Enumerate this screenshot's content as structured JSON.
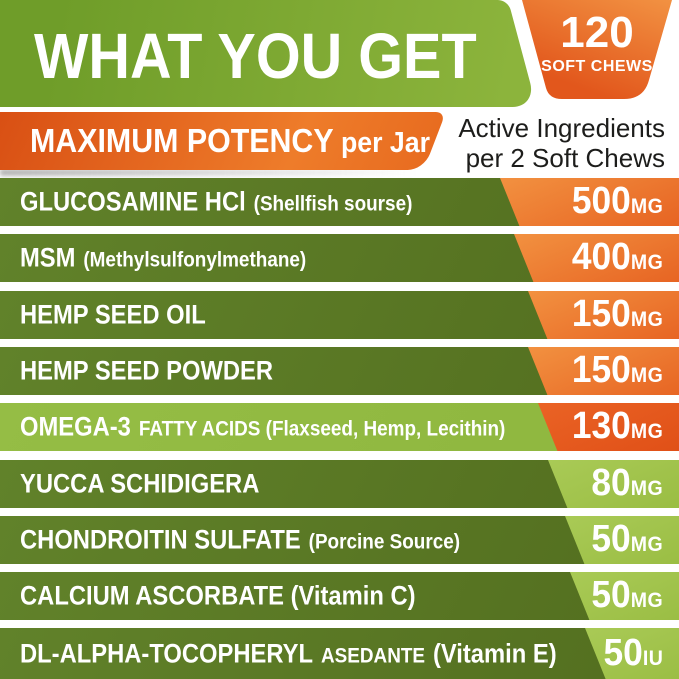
{
  "header": {
    "title": "WHAT YOU GET",
    "badge_count": "120",
    "badge_label": "SOFT CHEWS"
  },
  "potency": {
    "ribbon_main": "MAXIMUM POTENCY",
    "ribbon_suffix": "per Jar",
    "right_line1": "Active Ingredients",
    "right_line2": "per 2 Soft Chews"
  },
  "ingredients": [
    {
      "name": "GLUCOSAMINE HCl",
      "detail": "(Shellfish sourse)",
      "tail": "",
      "amount": "500",
      "unit": "MG",
      "bar": "dark",
      "value": "orange"
    },
    {
      "name": "MSM",
      "detail": "(Methylsulfonylmethane)",
      "tail": "",
      "amount": "400",
      "unit": "MG",
      "bar": "dark",
      "value": "orange"
    },
    {
      "name": "HEMP SEED OIL",
      "detail": "",
      "tail": "",
      "amount": "150",
      "unit": "MG",
      "bar": "dark",
      "value": "orange"
    },
    {
      "name": "HEMP SEED POWDER",
      "detail": "",
      "tail": "",
      "amount": "150",
      "unit": "MG",
      "bar": "dark",
      "value": "orange"
    },
    {
      "name": "OMEGA-3",
      "detail": "FATTY ACIDS (Flaxseed, Hemp, Lecithin)",
      "tail": "",
      "amount": "130",
      "unit": "MG",
      "bar": "light",
      "value": "red"
    },
    {
      "name": "YUCCA SCHIDIGERA",
      "detail": "",
      "tail": "",
      "amount": "80",
      "unit": "MG",
      "bar": "dark",
      "value": "green"
    },
    {
      "name": "CHONDROITIN SULFATE",
      "detail": "(Porcine Source)",
      "tail": "",
      "amount": "50",
      "unit": "MG",
      "bar": "dark",
      "value": "green"
    },
    {
      "name": "CALCIUM ASCORBATE (Vitamin C)",
      "detail": "",
      "tail": "",
      "amount": "50",
      "unit": "MG",
      "bar": "dark",
      "value": "green"
    },
    {
      "name": "DL-ALPHA-TOCOPHERYL",
      "detail": "ASEDANTE",
      "tail": "(Vitamin E)",
      "amount": "50",
      "unit": "IU",
      "bar": "dark",
      "value": "green"
    }
  ],
  "colors": {
    "banner_green": "#6f9d29",
    "banner_green_light": "#8cb43c",
    "corner_dark_green": "#42591c",
    "badge_orange": "#e2571c",
    "badge_orange_light": "#f29343",
    "ribbon_red_orange": "#d64a11",
    "ribbon_orange": "#ee7c2a",
    "row_green": "#61822a",
    "row_green_dark": "#547020",
    "row_light_green": "#8fb73f",
    "value_orange": "#e4581b",
    "value_orange_light": "#f29140",
    "value_red": "#dd4a13",
    "value_green": "#95b93d",
    "value_green_light": "#a9ca56",
    "ink": "#1d1d1b"
  }
}
